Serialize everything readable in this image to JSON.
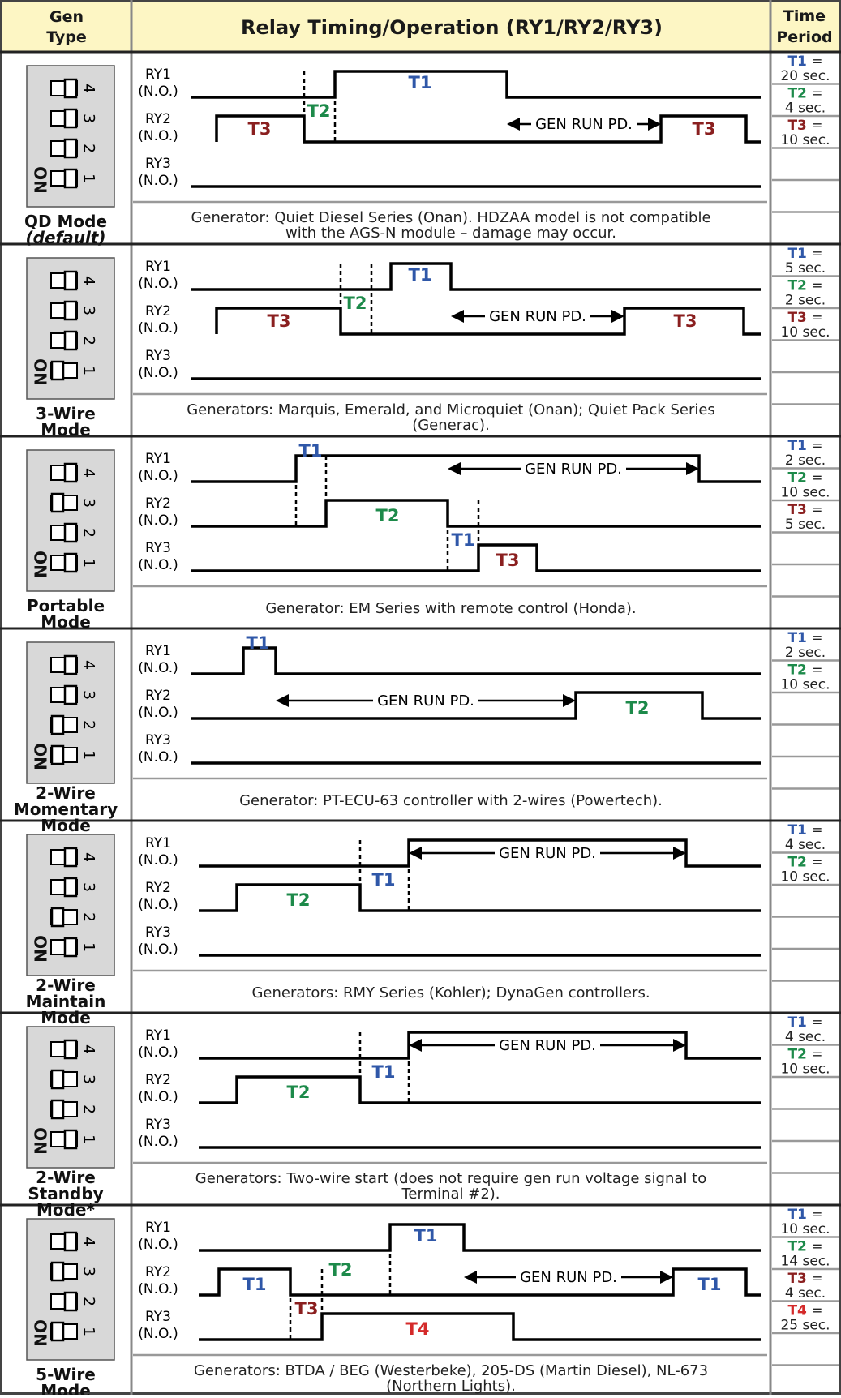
{
  "header": {
    "col1_line1": "Gen",
    "col1_line2": "Type",
    "col2": "Relay Timing/Operation (RY1/RY2/RY3)",
    "col3_line1": "Time",
    "col3_line2": "Period"
  },
  "relay_labels": {
    "ry1": "RY1",
    "ry2": "RY2",
    "ry3": "RY3",
    "no": "(N.O.)"
  },
  "on_label": "ON",
  "gen_run": "GEN RUN PD.",
  "colors": {
    "T1": "#2f57a8",
    "T2": "#1d8a4a",
    "T3": "#8a1f1f",
    "T4": "#d42a2a",
    "header_bg": "#fdf6c4",
    "switch_bg": "#d8d8d8"
  },
  "modes": [
    {
      "id": "qd",
      "name1": "QD Mode",
      "name2": "(default)",
      "switches_off": [
        1,
        2,
        3,
        4
      ],
      "caption1": "Generator: Quiet Diesel Series (Onan). HDZAA model is not compatible",
      "caption2": "with the AGS-N module – damage may occur.",
      "times": [
        {
          "k": "T1",
          "v": "20 sec."
        },
        {
          "k": "T2",
          "v": "4 sec."
        },
        {
          "k": "T3",
          "v": "10 sec."
        }
      ]
    },
    {
      "id": "3wire",
      "name1": "3-Wire",
      "name2": "Mode",
      "switches_off": [
        2,
        3,
        4
      ],
      "caption1": "Generators: Marquis, Emerald, and Microquiet (Onan); Quiet Pack Series",
      "caption2": "(Generac).",
      "times": [
        {
          "k": "T1",
          "v": "5 sec."
        },
        {
          "k": "T2",
          "v": "2 sec."
        },
        {
          "k": "T3",
          "v": "10 sec."
        }
      ]
    },
    {
      "id": "portable",
      "name1": "Portable",
      "name2": "Mode",
      "switches_off": [
        1,
        2,
        4
      ],
      "caption1": "Generator: EM Series with remote control (Honda).",
      "caption2": "",
      "times": [
        {
          "k": "T1",
          "v": "2 sec."
        },
        {
          "k": "T2",
          "v": "10 sec."
        },
        {
          "k": "T3",
          "v": "5 sec."
        }
      ]
    },
    {
      "id": "2wmom",
      "name1": "2-Wire",
      "name2": "Momentary",
      "name3": "Mode",
      "switches_off": [
        3,
        4
      ],
      "caption1": "Generator: PT-ECU-63 controller with 2-wires (Powertech).",
      "caption2": "",
      "times": [
        {
          "k": "T1",
          "v": "2 sec."
        },
        {
          "k": "T2",
          "v": "10 sec."
        }
      ]
    },
    {
      "id": "2wmain",
      "name1": "2-Wire",
      "name2": "Maintain",
      "name3": "Mode",
      "switches_off": [
        1,
        3,
        4
      ],
      "caption1": "Generators:  RMY Series (Kohler); DynaGen controllers.",
      "caption2": "",
      "times": [
        {
          "k": "T1",
          "v": "4 sec."
        },
        {
          "k": "T2",
          "v": "10 sec."
        }
      ]
    },
    {
      "id": "2wstby",
      "name1": "2-Wire",
      "name2": "Standby",
      "name3": "Mode*",
      "switches_off": [
        1,
        4
      ],
      "caption1": "Generators:  Two-wire start (does not require gen run voltage signal to",
      "caption2": "Terminal #2).",
      "times": [
        {
          "k": "T1",
          "v": "4 sec."
        },
        {
          "k": "T2",
          "v": "10 sec."
        }
      ]
    },
    {
      "id": "5wire",
      "name1": "5-Wire",
      "name2": "Mode",
      "switches_off": [
        2,
        4
      ],
      "caption1": "Generators: BTDA / BEG (Westerbeke), 205-DS (Martin Diesel), NL-673",
      "caption2": "(Northern Lights).",
      "times": [
        {
          "k": "T1",
          "v": "10 sec."
        },
        {
          "k": "T2",
          "v": "14 sec."
        },
        {
          "k": "T3",
          "v": "4 sec."
        },
        {
          "k": "T4",
          "v": "25 sec."
        }
      ]
    }
  ]
}
